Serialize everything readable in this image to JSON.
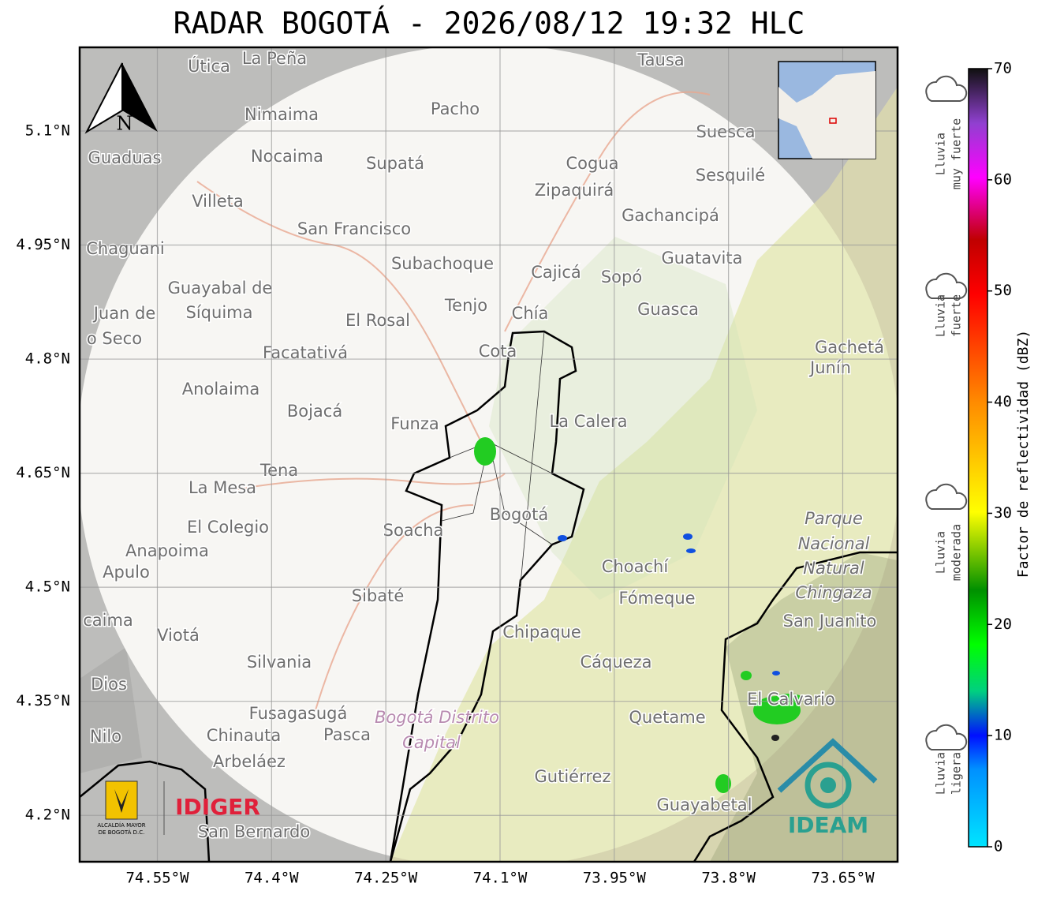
{
  "title": "RADAR BOGOTÁ - 2026/08/12 19:32 HLC",
  "map": {
    "lat_lim": [
      4.139,
      5.21
    ],
    "lon_lim": [
      -74.652,
      -73.578
    ],
    "lat_ticks": [
      {
        "value": 5.1,
        "label": "5.1°N"
      },
      {
        "value": 4.95,
        "label": "4.95°N"
      },
      {
        "value": 4.8,
        "label": "4.8°N"
      },
      {
        "value": 4.65,
        "label": "4.65°N"
      },
      {
        "value": 4.5,
        "label": "4.5°N"
      },
      {
        "value": 4.35,
        "label": "4.35°N"
      },
      {
        "value": 4.2,
        "label": "4.2°N"
      }
    ],
    "lon_ticks": [
      {
        "value": -74.55,
        "label": "74.55°W"
      },
      {
        "value": -74.4,
        "label": "74.4°W"
      },
      {
        "value": -74.25,
        "label": "74.25°W"
      },
      {
        "value": -74.1,
        "label": "74.1°W"
      },
      {
        "value": -73.95,
        "label": "73.95°W"
      },
      {
        "value": -73.8,
        "label": "73.8°W"
      },
      {
        "value": -73.65,
        "label": "73.65°W"
      }
    ],
    "north_label": "N",
    "places": [
      "La Peña",
      "Útica",
      "Tausa",
      "Pacho",
      "Nimaima",
      "Guaduas",
      "Nocaima",
      "Supatá",
      "Cogua",
      "Suesca",
      "Sesquilé",
      "Zipaquirá",
      "Villeta",
      "Gachancipá",
      "San Francisco",
      "Chaguani",
      "Guatavita",
      "Subachoque",
      "Cajicá",
      "Sopó",
      "Guayabal de",
      "Síquima",
      "Juan de",
      "o Seco",
      "Tenjo",
      "Chía",
      "El Rosal",
      "Guasca",
      "Facatativá",
      "Cota",
      "Gachetá",
      "Junín",
      "Anolaima",
      "Bojacá",
      "Funza",
      "La Calera",
      "Tena",
      "La Mesa",
      "Bogotá",
      "Parque",
      "El Colegio",
      "Soacha",
      "Nacional",
      "Anapoima",
      "Apulo",
      "Natural",
      "Choachí",
      "Chingaza",
      "Fómeque",
      "Sibaté",
      "San Juanito",
      "caima",
      "Viotá",
      "Chipaque",
      "Silvania",
      "Cáqueza",
      "Dios",
      "El Calvario",
      "Fusagasugá",
      "Bogotá Distrito",
      "Quetame",
      "Nilo",
      "Chinauta",
      "Pasca",
      "Capital",
      "Arbeláez",
      "Gutiérrez",
      "Guayabetal",
      "San Bernardo"
    ]
  },
  "colorbar": {
    "label": "Factor de reflectividad (dBZ)",
    "lim": [
      0,
      70
    ],
    "ticks": [
      0,
      10,
      20,
      30,
      40,
      50,
      60,
      70
    ],
    "categories": [
      [
        "Lluvia",
        "muy fuerte"
      ],
      [
        "Lluvia",
        "fuerte"
      ],
      [
        "Lluvia",
        "moderada"
      ],
      [
        "Lluvia",
        "ligera"
      ]
    ]
  },
  "logos": {
    "alcaldia": [
      "ALCALDÍA MAYOR",
      "DE BOGOTÁ D.C."
    ],
    "idiger": "IDIGER",
    "ideam": "IDEAM"
  }
}
